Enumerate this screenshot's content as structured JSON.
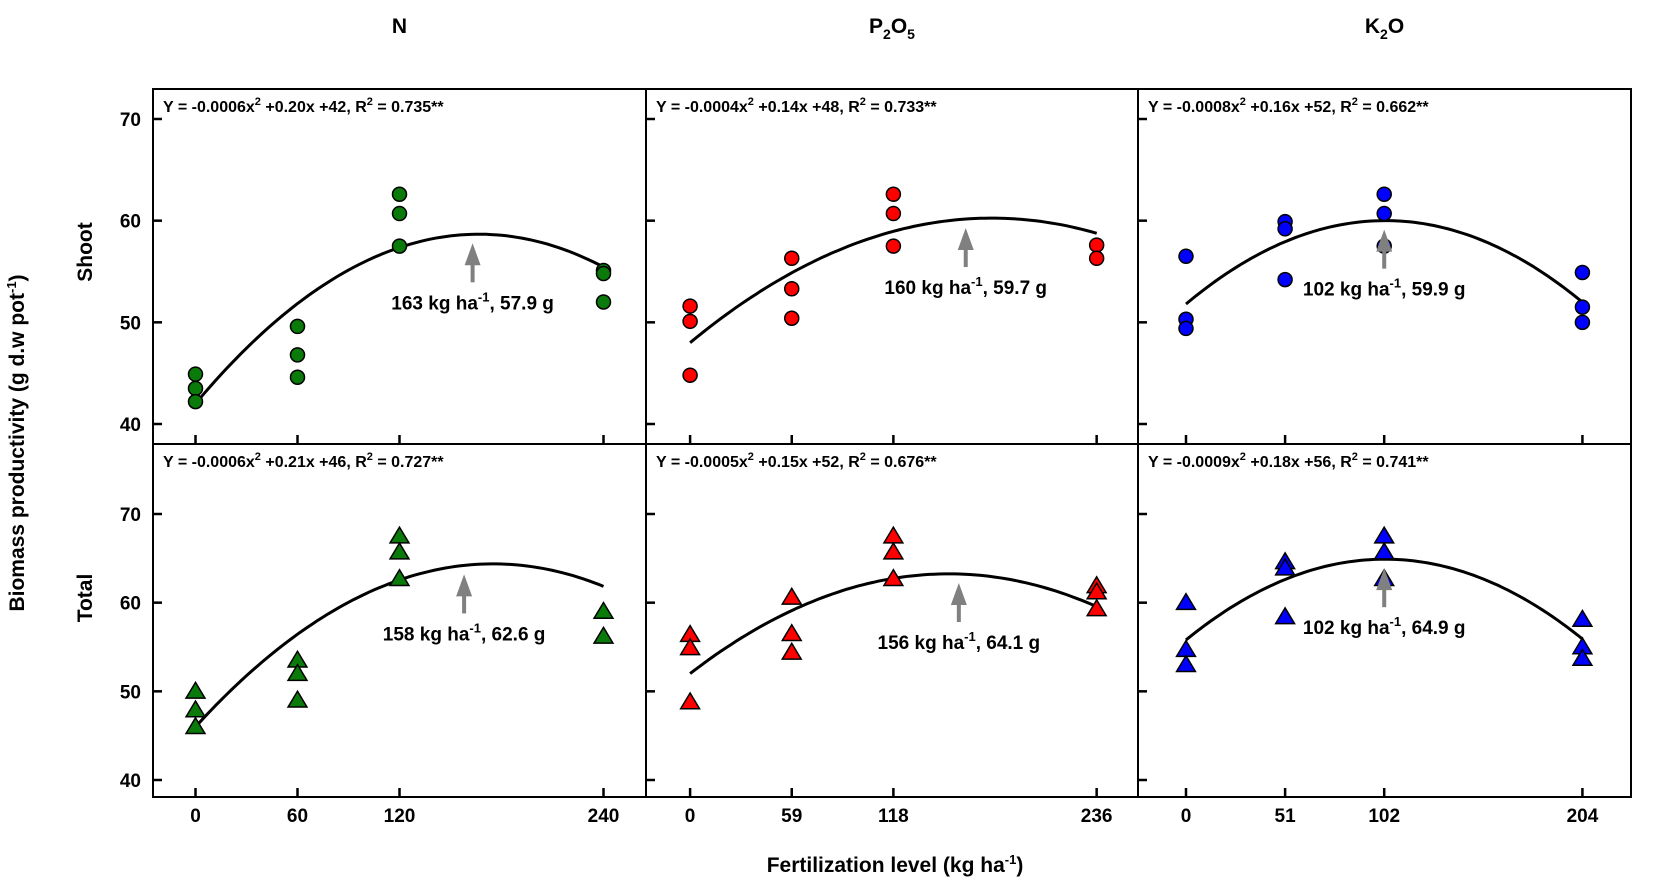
{
  "chart_data": {
    "type": "scatter",
    "title": "",
    "xlabel": "Fertilization level (kg ha-1)",
    "xlabel_main": "Fertilization level (kg ha",
    "xlabel_sup": "-1",
    "xlabel_end": ")",
    "ylabel": "Biomass productivity (g d.w pot-1)",
    "ylabel_main": "Biomass productivity (g d.w pot",
    "ylabel_sup": "-1",
    "ylabel_end": ")",
    "grid": false,
    "rows": [
      {
        "label": "Shoot",
        "ylim": [
          38,
          73
        ],
        "yticks": [
          40,
          50,
          60,
          70
        ],
        "marker": "circle"
      },
      {
        "label": "Total",
        "ylim": [
          38,
          78
        ],
        "yticks": [
          40,
          50,
          60,
          70
        ],
        "marker": "triangle"
      }
    ],
    "columns": [
      {
        "nutrient": "N",
        "header_parts": [
          {
            "t": "N",
            "sub": false
          }
        ],
        "color": "#0a7a0a",
        "xticks": [
          0,
          60,
          120,
          240
        ],
        "xlim": [
          -25,
          265
        ],
        "panels": [
          {
            "row": "Shoot",
            "equation_main": "Y = -0.0006x",
            "equation_sup": "2",
            "equation_rest": " +0.20x +42, R",
            "equation_sup2": "2",
            "equation_end": " = 0.735**",
            "coef": [
              -0.0006,
              0.2,
              42
            ],
            "fit_range": [
              0,
              240
            ],
            "optimum": {
              "x": 163,
              "y": 57.9
            },
            "annotation_main": "163 kg ha",
            "annotation_sup": "-1",
            "annotation_end": ", 57.9 g",
            "points": [
              {
                "x": 0,
                "y": 44.9
              },
              {
                "x": 0,
                "y": 43.5
              },
              {
                "x": 0,
                "y": 42.2
              },
              {
                "x": 60,
                "y": 49.6
              },
              {
                "x": 60,
                "y": 46.8
              },
              {
                "x": 60,
                "y": 44.6
              },
              {
                "x": 120,
                "y": 62.6
              },
              {
                "x": 120,
                "y": 60.7
              },
              {
                "x": 120,
                "y": 57.5
              },
              {
                "x": 240,
                "y": 55.1
              },
              {
                "x": 240,
                "y": 54.8
              },
              {
                "x": 240,
                "y": 52.0
              }
            ]
          },
          {
            "row": "Total",
            "equation_main": "Y = -0.0006x",
            "equation_sup": "2",
            "equation_rest": " +0.21x +46, R",
            "equation_sup2": "2",
            "equation_end": " = 0.727**",
            "coef": [
              -0.0006,
              0.21,
              46
            ],
            "fit_range": [
              0,
              240
            ],
            "optimum": {
              "x": 158,
              "y": 62.6
            },
            "annotation_main": "158 kg ha",
            "annotation_sup": "-1",
            "annotation_end": ", 62.6 g",
            "points": [
              {
                "x": 0,
                "y": 50.0
              },
              {
                "x": 0,
                "y": 47.9
              },
              {
                "x": 0,
                "y": 46.0
              },
              {
                "x": 60,
                "y": 53.5
              },
              {
                "x": 60,
                "y": 52.0
              },
              {
                "x": 60,
                "y": 49.0
              },
              {
                "x": 120,
                "y": 67.5
              },
              {
                "x": 120,
                "y": 65.7
              },
              {
                "x": 120,
                "y": 62.7
              },
              {
                "x": 240,
                "y": 59.0
              },
              {
                "x": 240,
                "y": 56.2
              }
            ]
          }
        ]
      },
      {
        "nutrient": "P2O5",
        "header_parts": [
          {
            "t": "P",
            "sub": false
          },
          {
            "t": "2",
            "sub": true
          },
          {
            "t": "O",
            "sub": false
          },
          {
            "t": "5",
            "sub": true
          }
        ],
        "color": "#ff0000",
        "xticks": [
          0,
          59,
          118,
          236
        ],
        "xlim": [
          -25.6,
          260
        ],
        "panels": [
          {
            "row": "Shoot",
            "equation_main": "Y = -0.0004x",
            "equation_sup": "2",
            "equation_rest": " +0.14x +48, R",
            "equation_sup2": "2",
            "equation_end": " = 0.733**",
            "coef": [
              -0.0004,
              0.14,
              48
            ],
            "fit_range": [
              0,
              236
            ],
            "optimum": {
              "x": 160,
              "y": 59.7
            },
            "annotation_main": "160 kg ha",
            "annotation_sup": "-1",
            "annotation_end": ", 59.7 g",
            "points": [
              {
                "x": 0,
                "y": 51.6
              },
              {
                "x": 0,
                "y": 50.1
              },
              {
                "x": 0,
                "y": 44.8
              },
              {
                "x": 59,
                "y": 56.3
              },
              {
                "x": 59,
                "y": 53.3
              },
              {
                "x": 59,
                "y": 50.4
              },
              {
                "x": 118,
                "y": 62.6
              },
              {
                "x": 118,
                "y": 60.7
              },
              {
                "x": 118,
                "y": 57.5
              },
              {
                "x": 236,
                "y": 57.6
              },
              {
                "x": 236,
                "y": 56.3
              }
            ]
          },
          {
            "row": "Total",
            "equation_main": "Y = -0.0005x",
            "equation_sup": "2",
            "equation_rest": " +0.15x +52, R",
            "equation_sup2": "2",
            "equation_end": " = 0.676**",
            "coef": [
              -0.0005,
              0.15,
              52
            ],
            "fit_range": [
              0,
              236
            ],
            "optimum": {
              "x": 156,
              "y": 64.1
            },
            "annotation_main": "156 kg ha",
            "annotation_sup": "-1",
            "annotation_end": ", 64.1 g",
            "points": [
              {
                "x": 0,
                "y": 56.4
              },
              {
                "x": 0,
                "y": 54.9
              },
              {
                "x": 0,
                "y": 48.8
              },
              {
                "x": 59,
                "y": 60.6
              },
              {
                "x": 59,
                "y": 56.5
              },
              {
                "x": 59,
                "y": 54.4
              },
              {
                "x": 118,
                "y": 67.5
              },
              {
                "x": 118,
                "y": 65.7
              },
              {
                "x": 118,
                "y": 62.7
              },
              {
                "x": 236,
                "y": 61.9
              },
              {
                "x": 236,
                "y": 61.2
              },
              {
                "x": 236,
                "y": 59.3
              }
            ]
          }
        ]
      },
      {
        "nutrient": "K2O",
        "header_parts": [
          {
            "t": "K",
            "sub": false
          },
          {
            "t": "2",
            "sub": true
          },
          {
            "t": "O",
            "sub": false
          }
        ],
        "color": "#0000ff",
        "xticks": [
          0,
          51,
          102,
          204
        ],
        "xlim": [
          -24.7,
          229
        ],
        "panels": [
          {
            "row": "Shoot",
            "equation_main": "Y = -0.0008x",
            "equation_sup": "2",
            "equation_rest": " +0.16x +52, R",
            "equation_sup2": "2",
            "equation_end": " = 0.662**",
            "coef": [
              -0.00078,
              0.16,
              51.8
            ],
            "fit_range": [
              0,
              204
            ],
            "optimum": {
              "x": 102,
              "y": 59.9
            },
            "annotation_main": "102 kg ha",
            "annotation_sup": "-1",
            "annotation_end": ", 59.9 g",
            "points": [
              {
                "x": 0,
                "y": 56.5
              },
              {
                "x": 0,
                "y": 50.3
              },
              {
                "x": 0,
                "y": 49.4
              },
              {
                "x": 51,
                "y": 59.9
              },
              {
                "x": 51,
                "y": 59.2
              },
              {
                "x": 51,
                "y": 54.2
              },
              {
                "x": 102,
                "y": 62.6
              },
              {
                "x": 102,
                "y": 60.7
              },
              {
                "x": 102,
                "y": 57.5
              },
              {
                "x": 204,
                "y": 54.9
              },
              {
                "x": 204,
                "y": 51.5
              },
              {
                "x": 204,
                "y": 50.0
              }
            ]
          },
          {
            "row": "Total",
            "equation_main": "Y = -0.0009x",
            "equation_sup": "2",
            "equation_rest": " +0.18x +56, R",
            "equation_sup2": "2",
            "equation_end": " = 0.741**",
            "coef": [
              -0.00087,
              0.178,
              55.8
            ],
            "fit_range": [
              0,
              204
            ],
            "optimum": {
              "x": 102,
              "y": 64.9
            },
            "annotation_main": "102 kg ha",
            "annotation_sup": "-1",
            "annotation_end": ", 64.9 g",
            "points": [
              {
                "x": 0,
                "y": 60.0
              },
              {
                "x": 0,
                "y": 54.7
              },
              {
                "x": 0,
                "y": 53.0
              },
              {
                "x": 51,
                "y": 64.6
              },
              {
                "x": 51,
                "y": 63.9
              },
              {
                "x": 51,
                "y": 58.4
              },
              {
                "x": 102,
                "y": 67.5
              },
              {
                "x": 102,
                "y": 65.7
              },
              {
                "x": 102,
                "y": 62.7
              },
              {
                "x": 204,
                "y": 58.1
              },
              {
                "x": 204,
                "y": 55.0
              },
              {
                "x": 204,
                "y": 53.7
              }
            ]
          }
        ]
      }
    ],
    "colors": {
      "line": "#000000",
      "arrow": "#808080",
      "marker_edge": "#000000"
    }
  }
}
